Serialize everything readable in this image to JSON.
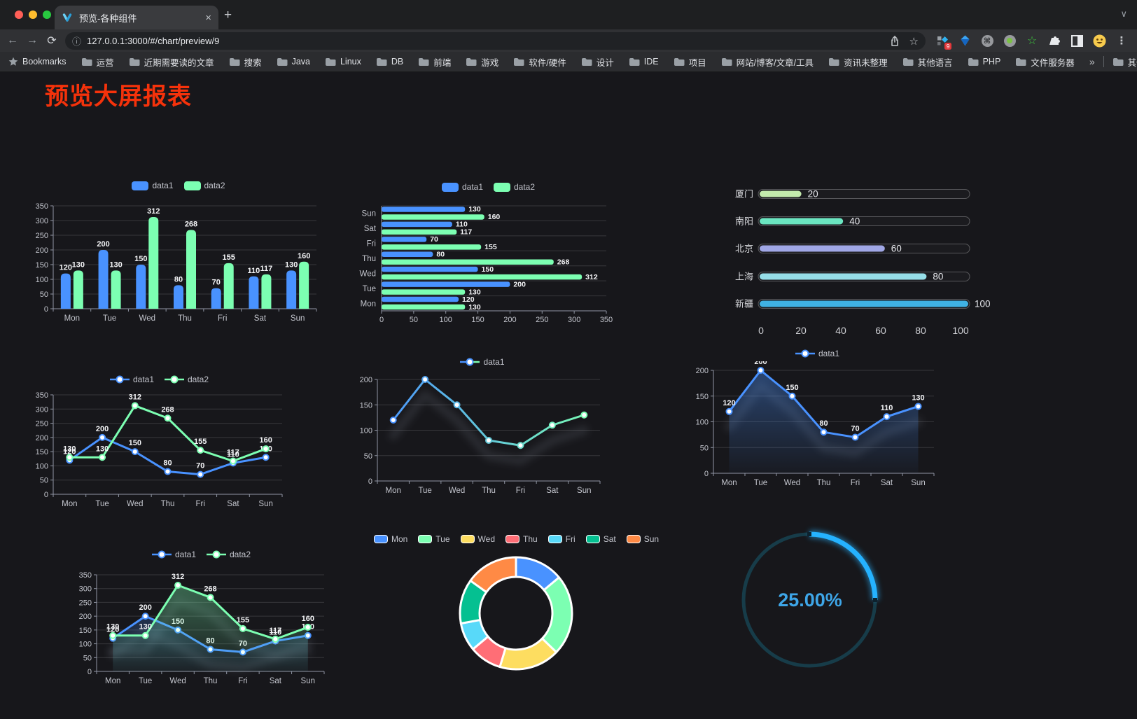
{
  "browser": {
    "tab_title": "预览-各种组件",
    "url": "127.0.0.1:3000/#/chart/preview/9",
    "new_tab": "+",
    "tab_chevron": "∨",
    "bookmarks_label": "Bookmarks",
    "bookmarks": [
      "运营",
      "近期需要读的文章",
      "搜索",
      "Java",
      "Linux",
      "DB",
      "前端",
      "游戏",
      "软件/硬件",
      "设计",
      "IDE",
      "项目",
      "网站/博客/文章/工具",
      "资讯未整理",
      "其他语言",
      "PHP",
      "文件服务器"
    ],
    "bookmarks_overflow": "»",
    "other_bookmarks": "其他书签",
    "extension_badge": "9"
  },
  "page": {
    "title": "预览大屏报表",
    "title_color": "#f5320b",
    "background": "#17171b",
    "accent_blue": "#4992ff",
    "accent_green": "#7cffb2"
  },
  "chart_data": [
    {
      "id": "bar-vertical",
      "type": "bar",
      "categories": [
        "Mon",
        "Tue",
        "Wed",
        "Thu",
        "Fri",
        "Sat",
        "Sun"
      ],
      "series": [
        {
          "name": "data1",
          "color": "#4992ff",
          "values": [
            120,
            200,
            150,
            80,
            70,
            110,
            130
          ]
        },
        {
          "name": "data2",
          "color": "#7cffb2",
          "values": [
            130,
            130,
            312,
            268,
            155,
            117,
            160
          ]
        }
      ],
      "ymax": 350,
      "yticks": [
        0,
        50,
        100,
        150,
        200,
        250,
        300,
        350
      ],
      "labels": true,
      "legend": {
        "kind": "rect",
        "items": [
          {
            "label": "data1",
            "color": "#4992ff"
          },
          {
            "label": "data2",
            "color": "#7cffb2"
          }
        ]
      }
    },
    {
      "id": "bar-horizontal",
      "type": "hbar",
      "categories": [
        "Mon",
        "Tue",
        "Wed",
        "Thu",
        "Fri",
        "Sat",
        "Sun"
      ],
      "series": [
        {
          "name": "data1",
          "color": "#4992ff",
          "values": [
            120,
            200,
            150,
            80,
            70,
            110,
            130
          ]
        },
        {
          "name": "data2",
          "color": "#7cffb2",
          "values": [
            130,
            130,
            312,
            268,
            155,
            117,
            160
          ]
        }
      ],
      "xmax": 350,
      "xticks": [
        0,
        50,
        100,
        150,
        200,
        250,
        300,
        350
      ],
      "labels": true,
      "legend": {
        "kind": "rect",
        "items": [
          {
            "label": "data1",
            "color": "#4992ff"
          },
          {
            "label": "data2",
            "color": "#7cffb2"
          }
        ]
      }
    },
    {
      "id": "progress",
      "type": "progress",
      "items": [
        {
          "label": "厦门",
          "value": 20,
          "color": "#c4ebad"
        },
        {
          "label": "南阳",
          "value": 40,
          "color": "#6be6c1"
        },
        {
          "label": "北京",
          "value": 60,
          "color": "#a0a7e6"
        },
        {
          "label": "上海",
          "value": 80,
          "color": "#96dee8"
        },
        {
          "label": "新疆",
          "value": 100,
          "color": "#3fb1e3"
        }
      ],
      "max": 100,
      "xticks": [
        0,
        20,
        40,
        60,
        80,
        100
      ]
    },
    {
      "id": "line-dual",
      "type": "line",
      "categories": [
        "Mon",
        "Tue",
        "Wed",
        "Thu",
        "Fri",
        "Sat",
        "Sun"
      ],
      "series": [
        {
          "name": "data1",
          "color": "#4992ff",
          "values": [
            120,
            200,
            150,
            80,
            70,
            110,
            130
          ]
        },
        {
          "name": "data2",
          "color": "#7cffb2",
          "values": [
            130,
            130,
            312,
            268,
            155,
            117,
            160
          ]
        }
      ],
      "ymax": 350,
      "yticks": [
        0,
        50,
        100,
        150,
        200,
        250,
        300,
        350
      ],
      "labels": true,
      "legend": {
        "kind": "line",
        "items": [
          {
            "label": "data1",
            "color": "#4992ff"
          },
          {
            "label": "data2",
            "color": "#7cffb2"
          }
        ]
      }
    },
    {
      "id": "line-gradient",
      "type": "line",
      "categories": [
        "Mon",
        "Tue",
        "Wed",
        "Thu",
        "Fri",
        "Sat",
        "Sun"
      ],
      "series": [
        {
          "name": "data1",
          "color": "#4992ff",
          "values": [
            120,
            200,
            150,
            80,
            70,
            110,
            130
          ]
        }
      ],
      "gradient": [
        "#4992ff",
        "#7cffb2"
      ],
      "shadow": true,
      "ymax": 200,
      "yticks": [
        0,
        50,
        100,
        150,
        200
      ],
      "labels": false,
      "legend": {
        "kind": "line",
        "items": [
          {
            "label": "data1",
            "color": "#4992ff",
            "color2": "#7cffb2"
          }
        ]
      }
    },
    {
      "id": "area-single",
      "type": "line",
      "categories": [
        "Mon",
        "Tue",
        "Wed",
        "Thu",
        "Fri",
        "Sat",
        "Sun"
      ],
      "series": [
        {
          "name": "data1",
          "color": "#4992ff",
          "values": [
            120,
            200,
            150,
            80,
            70,
            110,
            130
          ],
          "area": true
        }
      ],
      "shadow": true,
      "ymax": 200,
      "yticks": [
        0,
        50,
        100,
        150,
        200
      ],
      "labels": true,
      "legend": {
        "kind": "line",
        "items": [
          {
            "label": "data1",
            "color": "#4992ff"
          }
        ]
      }
    },
    {
      "id": "line-dual-area",
      "type": "line",
      "categories": [
        "Mon",
        "Tue",
        "Wed",
        "Thu",
        "Fri",
        "Sat",
        "Sun"
      ],
      "series": [
        {
          "name": "data1",
          "color": "#4992ff",
          "values": [
            120,
            200,
            150,
            80,
            70,
            110,
            130
          ],
          "area": true
        },
        {
          "name": "data2",
          "color": "#7cffb2",
          "values": [
            130,
            130,
            312,
            268,
            155,
            117,
            160
          ],
          "area": true
        }
      ],
      "shadow": true,
      "ymax": 350,
      "yticks": [
        0,
        50,
        100,
        150,
        200,
        250,
        300,
        350
      ],
      "labels": true,
      "legend": {
        "kind": "line",
        "items": [
          {
            "label": "data1",
            "color": "#4992ff"
          },
          {
            "label": "data2",
            "color": "#7cffb2"
          }
        ]
      }
    },
    {
      "id": "doughnut",
      "type": "pie",
      "items": [
        {
          "label": "Mon",
          "value": 120,
          "color": "#4992ff"
        },
        {
          "label": "Tue",
          "value": 200,
          "color": "#7cffb2"
        },
        {
          "label": "Wed",
          "value": 150,
          "color": "#fddd60"
        },
        {
          "label": "Thu",
          "value": 80,
          "color": "#ff6e76"
        },
        {
          "label": "Fri",
          "value": 70,
          "color": "#58d9f9"
        },
        {
          "label": "Sat",
          "value": 110,
          "color": "#05c091"
        },
        {
          "label": "Sun",
          "value": 130,
          "color": "#ff8a45"
        }
      ],
      "legend": {
        "kind": "rect-border",
        "items": [
          {
            "label": "Mon",
            "color": "#4992ff"
          },
          {
            "label": "Tue",
            "color": "#7cffb2"
          },
          {
            "label": "Wed",
            "color": "#fddd60"
          },
          {
            "label": "Thu",
            "color": "#ff6e76"
          },
          {
            "label": "Fri",
            "color": "#58d9f9"
          },
          {
            "label": "Sat",
            "color": "#05c091"
          },
          {
            "label": "Sun",
            "color": "#ff8a45"
          }
        ]
      }
    },
    {
      "id": "gauge",
      "type": "gauge",
      "value": "25.00%",
      "percent": 25,
      "arc_color": "#25b2ff",
      "track_color": "#173c49",
      "text_color": "#3ea6e8"
    }
  ]
}
